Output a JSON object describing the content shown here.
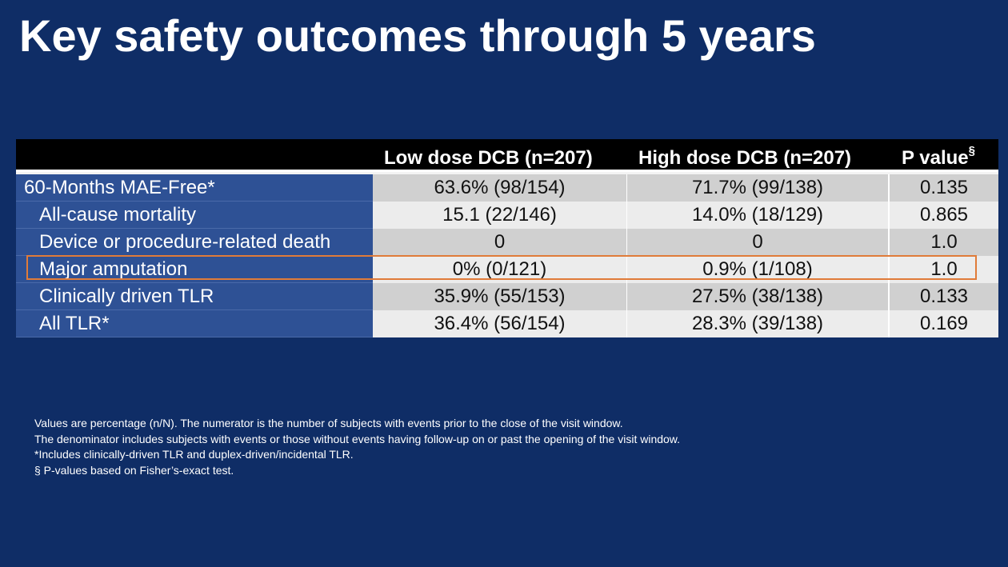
{
  "slide": {
    "title": "Key safety outcomes through 5 years"
  },
  "table": {
    "headers": {
      "low": "Low dose DCB (n=207)",
      "high": "High dose DCB (n=207)",
      "p": "P value",
      "p_sup": "§"
    },
    "rows": [
      {
        "label": "60-Months MAE-Free*",
        "low": "63.6% (98/154)",
        "high": "71.7% (99/138)",
        "p": "0.135"
      },
      {
        "label": "All-cause mortality",
        "low": "15.1 (22/146)",
        "high": "14.0% (18/129)",
        "p": "0.865"
      },
      {
        "label": "Device or procedure-related death",
        "low": "0",
        "high": "0",
        "p": "1.0"
      },
      {
        "label": "Major amputation",
        "low": "0% (0/121)",
        "high": "0.9% (1/108)",
        "p": "1.0"
      },
      {
        "label": "Clinically driven TLR",
        "low": "35.9% (55/153)",
        "high": "27.5% (38/138)",
        "p": "0.133"
      },
      {
        "label": "All TLR*",
        "low": "36.4% (56/154)",
        "high": "28.3% (39/138)",
        "p": "0.169"
      }
    ],
    "highlighted_row": "Major amputation",
    "highlight_color": "#e07b39"
  },
  "footnotes": [
    "Values are percentage (n/N). The numerator is the number of subjects with events prior to the close of the visit window.",
    "The denominator includes subjects with events or those without events having follow-up on or past the opening of the visit window.",
    "*Includes clinically-driven TLR and duplex-driven/incidental TLR.",
    "§ P-values based on Fisher’s-exact test."
  ],
  "colors": {
    "background": "#0f2d66",
    "label_column": "#2e5195",
    "header": "#000000"
  }
}
